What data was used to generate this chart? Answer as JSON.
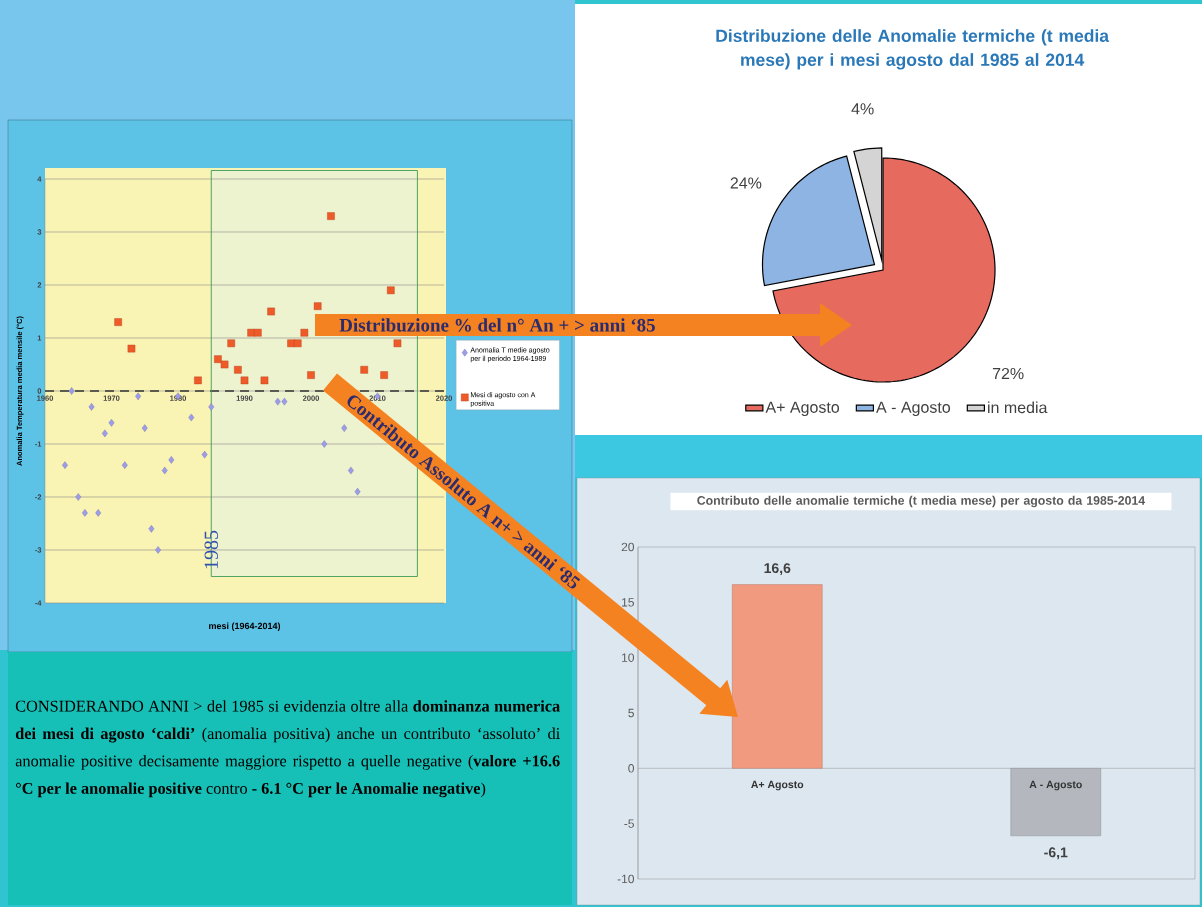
{
  "chart_data": [
    {
      "type": "scatter",
      "xlabel": "mesi (1964-2014)",
      "ylabel": "Anomalia Temperatura media mensile (°C)",
      "xlim": [
        1960,
        2020
      ],
      "xticks": [
        1960,
        1970,
        1980,
        1990,
        2000,
        2010,
        2020
      ],
      "ylim": [
        -4,
        4
      ],
      "yticks": [
        -4,
        -3,
        -2,
        -1,
        0,
        1,
        2,
        3,
        4
      ],
      "grid": "y",
      "legend": "right",
      "ref_lines": [
        {
          "axis": "y",
          "value": 0,
          "line_style": "dashed",
          "color": "#333333"
        }
      ],
      "bands": [
        {
          "axis": "x",
          "from": 1985,
          "to": 2016,
          "label": "1985",
          "color": "#eef3cf"
        }
      ],
      "annotations": [
        "Distribuzione % del n° An + > anni ‘85",
        "Contributo Assoluto A n+ > anni ‘85"
      ],
      "series": [
        {
          "name": "Anomalia T medie agosto per il periodo 1964-1989",
          "color": "#9c9ce8",
          "marker": "diamond",
          "x": [
            1963,
            1964,
            1965,
            1966,
            1967,
            1968,
            1969,
            1970,
            1972,
            1974,
            1975,
            1976,
            1977,
            1978,
            1979,
            1980,
            1982,
            1984,
            1985,
            1995,
            1996,
            2002,
            2005,
            2006,
            2007,
            2010
          ],
          "values": [
            -1.4,
            0,
            -2,
            -2.3,
            -0.3,
            -2.3,
            -0.8,
            -0.6,
            -1.4,
            -0.1,
            -0.7,
            -2.6,
            -3,
            -1.5,
            -1.3,
            -0.1,
            -0.5,
            -1.2,
            -0.3,
            -0.2,
            -0.2,
            -1,
            -0.7,
            -1.5,
            -1.9,
            -0.1
          ]
        },
        {
          "name": "Mesi di agosto con A positiva",
          "color": "#ee5a28",
          "marker": "square",
          "x": [
            1971,
            1973,
            1983,
            1986,
            1987,
            1988,
            1989,
            1990,
            1991,
            1992,
            1993,
            1994,
            1997,
            1998,
            1999,
            2000,
            2001,
            2003,
            2008,
            2011,
            2012,
            2013
          ],
          "values": [
            1.3,
            0.8,
            0.2,
            0.6,
            0.5,
            0.9,
            0.4,
            0.2,
            1.1,
            1.1,
            0.2,
            1.5,
            0.9,
            0.9,
            1.1,
            0.3,
            1.6,
            3.3,
            0.4,
            0.3,
            1.9,
            0.9
          ]
        }
      ]
    },
    {
      "type": "pie",
      "title": "Distribuzione delle Anomalie termiche  (t media mese) per i mesi agosto dal 1985 al 2014",
      "categories": [
        "A+ Agosto",
        "A - Agosto",
        "in media"
      ],
      "values": [
        72,
        24,
        4
      ],
      "colors": [
        "#e66a5e",
        "#8eb4e3",
        "#d4d4d4"
      ],
      "value_labels": [
        "72%",
        "24%",
        "4%"
      ],
      "legend": "bottom"
    },
    {
      "type": "bar",
      "title": "Contributo delle anomalie termiche  (t media mese) per agosto da 1985-2014",
      "categories": [
        "A+ Agosto",
        "A - Agosto"
      ],
      "values": [
        16.6,
        -6.1
      ],
      "colors": [
        "#f29a80",
        "#b4b8be"
      ],
      "value_labels": [
        "16,6",
        "-6,1"
      ],
      "ylim": [
        -10,
        20
      ],
      "yticks": [
        -10,
        -5,
        0,
        5,
        10,
        15,
        20
      ]
    },
    {
      "type": "other",
      "annotations": [
        "CONSIDERANDO ANNI > del 1985 si evidenzia oltre alla **dominanza numerica dei mesi di agosto ‘caldi’** (anomalia positiva) anche un contributo ‘assoluto’ di anomalie positive decisamente maggiore rispetto a quelle negative (**valore +16.6 °C per le anomalie positive** contro **- 6.1 °C per le Anomalie negative**)"
      ]
    }
  ]
}
